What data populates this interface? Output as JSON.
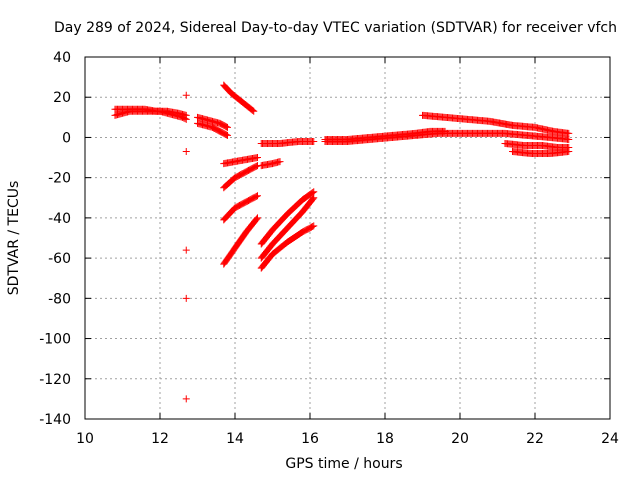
{
  "chart_data": {
    "type": "scatter",
    "title": "Day 289 of 2024, Sidereal Day-to-day VTEC variation (SDTVAR) for receiver vfch",
    "xlabel": "GPS time / hours",
    "ylabel": "SDTVAR / TECUs",
    "xlim": [
      10,
      24
    ],
    "ylim": [
      -140,
      40
    ],
    "xticks": [
      "10",
      "12",
      "14",
      "16",
      "18",
      "20",
      "22",
      "24"
    ],
    "yticks": [
      "40",
      "20",
      "0",
      "-20",
      "-40",
      "-60",
      "-80",
      "-100",
      "-120",
      "-140"
    ],
    "grid": true,
    "marker": "+",
    "color": "#ff0000",
    "series": [
      {
        "x": [
          10.8,
          11.0,
          11.2,
          11.5,
          11.8,
          12.0,
          12.2,
          12.4,
          12.6,
          12.7
        ],
        "y": [
          11,
          12,
          13,
          13,
          13,
          13,
          12,
          11,
          10,
          9
        ]
      },
      {
        "x": [
          10.8,
          11.0,
          11.3,
          11.6,
          11.9,
          12.2,
          12.5,
          12.7
        ],
        "y": [
          14,
          14,
          14,
          14,
          13,
          13,
          12,
          11
        ]
      },
      {
        "x": [
          12.7,
          12.7,
          12.7,
          12.7,
          12.7
        ],
        "y": [
          21,
          -7,
          -56,
          -80,
          -130
        ]
      },
      {
        "x": [
          13.0,
          13.2,
          13.4,
          13.6,
          13.8
        ],
        "y": [
          10,
          9,
          8,
          7,
          5
        ]
      },
      {
        "x": [
          13.0,
          13.2,
          13.4,
          13.6,
          13.8
        ],
        "y": [
          7,
          6,
          5,
          3,
          1
        ]
      },
      {
        "x": [
          13.7,
          13.9,
          14.1,
          14.3,
          14.5
        ],
        "y": [
          26,
          22,
          19,
          16,
          13
        ]
      },
      {
        "x": [
          13.7,
          14.0,
          14.3,
          14.6
        ],
        "y": [
          -13,
          -12,
          -11,
          -10
        ]
      },
      {
        "x": [
          14.7,
          15.0,
          15.2
        ],
        "y": [
          -14,
          -13,
          -12
        ]
      },
      {
        "x": [
          13.7,
          14.0,
          14.3,
          14.6
        ],
        "y": [
          -25,
          -20,
          -17,
          -14
        ]
      },
      {
        "x": [
          13.7,
          14.0,
          14.3,
          14.6
        ],
        "y": [
          -41,
          -35,
          -32,
          -29
        ]
      },
      {
        "x": [
          13.7,
          14.0,
          14.3,
          14.6
        ],
        "y": [
          -63,
          -55,
          -47,
          -40
        ]
      },
      {
        "x": [
          14.7,
          15.0,
          15.4,
          15.8,
          16.1
        ],
        "y": [
          -65,
          -58,
          -52,
          -47,
          -44
        ]
      },
      {
        "x": [
          14.7,
          15.0,
          15.4,
          15.8,
          16.1
        ],
        "y": [
          -53,
          -46,
          -38,
          -31,
          -27
        ]
      },
      {
        "x": [
          14.7,
          15.0,
          15.4,
          15.8,
          16.1
        ],
        "y": [
          -60,
          -53,
          -45,
          -37,
          -30
        ]
      },
      {
        "x": [
          14.7,
          15.2,
          15.7,
          16.1
        ],
        "y": [
          -3,
          -3,
          -2,
          -2
        ]
      },
      {
        "x": [
          16.4,
          17.0,
          17.6,
          18.2,
          18.8,
          19.4,
          20.0,
          20.6,
          21.2,
          21.8,
          22.4,
          22.9
        ],
        "y": [
          -2,
          -2,
          -1,
          0,
          1,
          2,
          2,
          2,
          2,
          1,
          0,
          -1
        ]
      },
      {
        "x": [
          16.4,
          17.0,
          17.6,
          18.2,
          18.8,
          19.2,
          19.6
        ],
        "y": [
          -1,
          -1,
          0,
          1,
          2,
          3,
          3
        ]
      },
      {
        "x": [
          19.0,
          19.6,
          20.2,
          20.8,
          21.4,
          22.0,
          22.5,
          22.9
        ],
        "y": [
          11,
          10,
          9,
          8,
          6,
          5,
          3,
          2
        ]
      },
      {
        "x": [
          21.2,
          21.7,
          22.2,
          22.6,
          22.9
        ],
        "y": [
          -3,
          -4,
          -4,
          -5,
          -5
        ]
      },
      {
        "x": [
          21.4,
          21.9,
          22.4,
          22.9
        ],
        "y": [
          -7,
          -8,
          -8,
          -7
        ]
      }
    ]
  }
}
